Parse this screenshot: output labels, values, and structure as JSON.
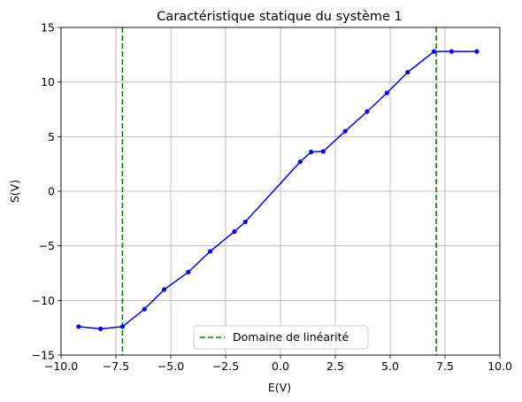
{
  "chart_data": {
    "type": "line",
    "title": "Caractéristique statique du système 1",
    "xlabel": "E(V)",
    "ylabel": "S(V)",
    "xlim": [
      -10,
      10
    ],
    "ylim": [
      -15,
      15
    ],
    "xticks": [
      -10,
      -7.5,
      -5,
      -2.5,
      0,
      2.5,
      5,
      7.5,
      10
    ],
    "xtick_labels": [
      "−10.0",
      "−7.5",
      "−5.0",
      "−2.5",
      "0.0",
      "2.5",
      "5.0",
      "7.5",
      "10.0"
    ],
    "yticks": [
      -15,
      -10,
      -5,
      0,
      5,
      10,
      15
    ],
    "ytick_labels": [
      "−15",
      "−10",
      "−5",
      "0",
      "5",
      "10",
      "15"
    ],
    "grid": true,
    "legend_position": "lower-center",
    "series": [
      {
        "color": "#0000ff",
        "marker": "dot",
        "x": [
          -9.2,
          -8.2,
          -7.2,
          -6.2,
          -5.3,
          -4.2,
          -3.2,
          -2.1,
          -1.6,
          0.9,
          1.4,
          1.95,
          2.95,
          3.95,
          4.85,
          5.8,
          7.0,
          7.8,
          8.95
        ],
        "y": [
          -12.4,
          -12.6,
          -12.4,
          -10.8,
          -9.0,
          -7.4,
          -5.5,
          -3.7,
          -2.8,
          2.7,
          3.6,
          3.65,
          5.5,
          7.3,
          9.0,
          10.9,
          12.8,
          12.8,
          12.8
        ]
      }
    ],
    "vlines": [
      {
        "name": "Domaine de linéarité",
        "x": -7.2,
        "color": "#008000",
        "style": "dashed"
      },
      {
        "x": 7.1,
        "color": "#008000",
        "style": "dashed"
      }
    ],
    "legend": [
      {
        "label": "Domaine de linéarité",
        "color": "#008000",
        "style": "dashed"
      }
    ]
  }
}
